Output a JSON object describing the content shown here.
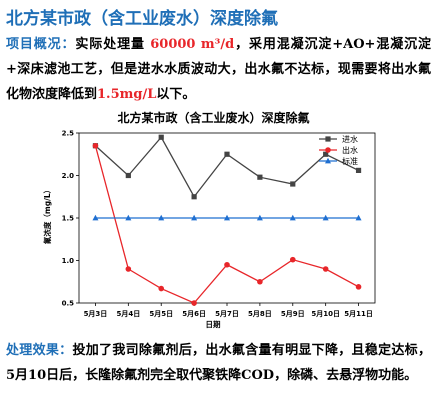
{
  "header": {
    "title": "北方某市政（含工业废水）深度除氟"
  },
  "overview": {
    "label": "项目概况：",
    "text_before": "实际处理量 ",
    "capacity": "60000 m³/d",
    "text_middle": "，采用混凝沉淀+AO+混凝沉淀+深床滤池工艺，但是进水水质波动大，出水氟不达标，现需要将出水氟化物浓度降低到",
    "target": "1.5mg/L",
    "text_after": "以下。"
  },
  "effect": {
    "label": "处理效果：",
    "text": "投加了我司除氟剂后，出水氟含量有明显下降，且稳定达标，5月10日后，长隆除氟剂完全取代聚铁降COD，除磷、去悬浮物功能。"
  },
  "chart_data": {
    "type": "line",
    "title": "北方某市政（含工业废水）深度除氟",
    "xlabel": "日期",
    "ylabel": "氟浓度（mg/L）",
    "categories": [
      "5月3日",
      "5月4日",
      "5月5日",
      "5月6日",
      "5月7日",
      "5月8日",
      "5月9日",
      "5月10日",
      "5月11日"
    ],
    "ylim": [
      0.5,
      2.5
    ],
    "yticks": [
      "0.5",
      "1.0",
      "1.5",
      "2.0",
      "2.5"
    ],
    "legend_position": "top-right",
    "grid": false,
    "series": [
      {
        "name": "进水",
        "color": "#444444",
        "marker": "square",
        "values": [
          2.35,
          2.0,
          2.45,
          1.75,
          2.25,
          1.98,
          1.9,
          2.25,
          2.06
        ]
      },
      {
        "name": "出水",
        "color": "#e8262a",
        "marker": "circle",
        "values": [
          2.35,
          0.9,
          0.67,
          0.5,
          0.95,
          0.75,
          1.01,
          0.9,
          0.69
        ]
      },
      {
        "name": "标准",
        "color": "#1f6fd1",
        "marker": "triangle",
        "values": [
          1.5,
          1.5,
          1.5,
          1.5,
          1.5,
          1.5,
          1.5,
          1.5,
          1.5
        ]
      }
    ]
  }
}
